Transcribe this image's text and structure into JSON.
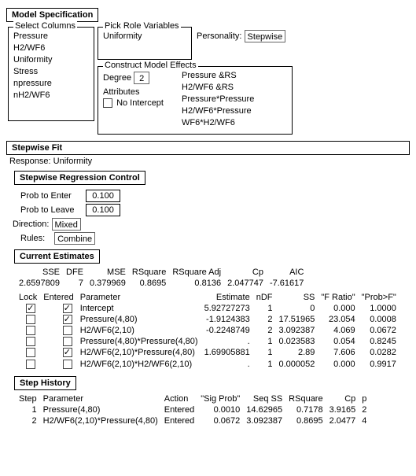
{
  "modelSpec": {
    "title": "Model Specification",
    "selectColumns": {
      "label": "Select Columns",
      "items": [
        "Pressure",
        "H2/WF6",
        "Uniformity",
        "Stress",
        "npressure",
        "nH2/WF6"
      ]
    },
    "pickRole": {
      "label": "Pick Role Variables",
      "items": [
        "Uniformity"
      ]
    },
    "personality": {
      "label": "Personality:",
      "value": "Stepwise"
    },
    "construct": {
      "label": "Construct Model Effects",
      "degreeLabel": "Degree",
      "degreeValue": "2",
      "attributesLabel": "Attributes",
      "noInterceptLabel": "No Intercept",
      "noIntercept": false,
      "effects": [
        "Pressure &RS",
        "H2/WF6 &RS",
        "Pressure*Pressure",
        "H2/WF6*Pressure",
        "WF6*H2/WF6"
      ]
    }
  },
  "stepwiseFit": {
    "title": "Stepwise Fit",
    "responseLabel": "Response:",
    "responseValue": "Uniformity",
    "controlTitle": "Stepwise Regression Control",
    "probEnter": {
      "label": "Prob to Enter",
      "value": "0.100"
    },
    "probLeave": {
      "label": "Prob to Leave",
      "value": "0.100"
    },
    "direction": {
      "label": "Direction:",
      "value": "Mixed"
    },
    "rules": {
      "label": "Rules:",
      "value": "Combine"
    }
  },
  "currentEstimates": {
    "title": "Current Estimates",
    "summaryHeaders": [
      "SSE",
      "DFE",
      "MSE",
      "RSquare",
      "RSquare Adj",
      "Cp",
      "AIC"
    ],
    "summaryValues": [
      "2.6597809",
      "7",
      "0.379969",
      "0.8695",
      "0.8136",
      "2.047747",
      "-7.61617"
    ],
    "detailHeaders": [
      "Lock",
      "Entered",
      "Parameter",
      "Estimate",
      "nDF",
      "SS",
      "\"F Ratio\"",
      "\"Prob>F\""
    ],
    "rows": [
      {
        "lock": true,
        "entered": true,
        "param": "Intercept",
        "estimate": "5.92727273",
        "ndf": "1",
        "ss": "0",
        "f": "0.000",
        "p": "1.0000"
      },
      {
        "lock": false,
        "entered": true,
        "param": "Pressure(4,80)",
        "estimate": "-1.9124383",
        "ndf": "2",
        "ss": "17.51965",
        "f": "23.054",
        "p": "0.0008"
      },
      {
        "lock": false,
        "entered": false,
        "param": "H2/WF6(2,10)",
        "estimate": "-0.2248749",
        "ndf": "2",
        "ss": "3.092387",
        "f": "4.069",
        "p": "0.0672"
      },
      {
        "lock": false,
        "entered": false,
        "param": "Pressure(4,80)*Pressure(4,80)",
        "estimate": ".",
        "ndf": "1",
        "ss": "0.023583",
        "f": "0.054",
        "p": "0.8245"
      },
      {
        "lock": false,
        "entered": true,
        "param": "H2/WF6(2,10)*Pressure(4,80)",
        "estimate": "1.69905881",
        "ndf": "1",
        "ss": "2.89",
        "f": "7.606",
        "p": "0.0282"
      },
      {
        "lock": false,
        "entered": false,
        "param": "H2/WF6(2,10)*H2/WF6(2,10)",
        "estimate": ".",
        "ndf": "1",
        "ss": "0.000052",
        "f": "0.000",
        "p": "0.9917"
      }
    ]
  },
  "stepHistory": {
    "title": "Step History",
    "headers": [
      "Step",
      "Parameter",
      "Action",
      "\"Sig Prob\"",
      "Seq SS",
      "RSquare",
      "Cp",
      "p"
    ],
    "rows": [
      {
        "step": "1",
        "param": "Pressure(4,80)",
        "action": "Entered",
        "sig": "0.0010",
        "seq": "14.62965",
        "r2": "0.7178",
        "cp": "3.9165",
        "p": "2"
      },
      {
        "step": "2",
        "param": "H2/WF6(2,10)*Pressure(4,80)",
        "action": "Entered",
        "sig": "0.0672",
        "seq": "3.092387",
        "r2": "0.8695",
        "cp": "2.0477",
        "p": "4"
      }
    ]
  }
}
